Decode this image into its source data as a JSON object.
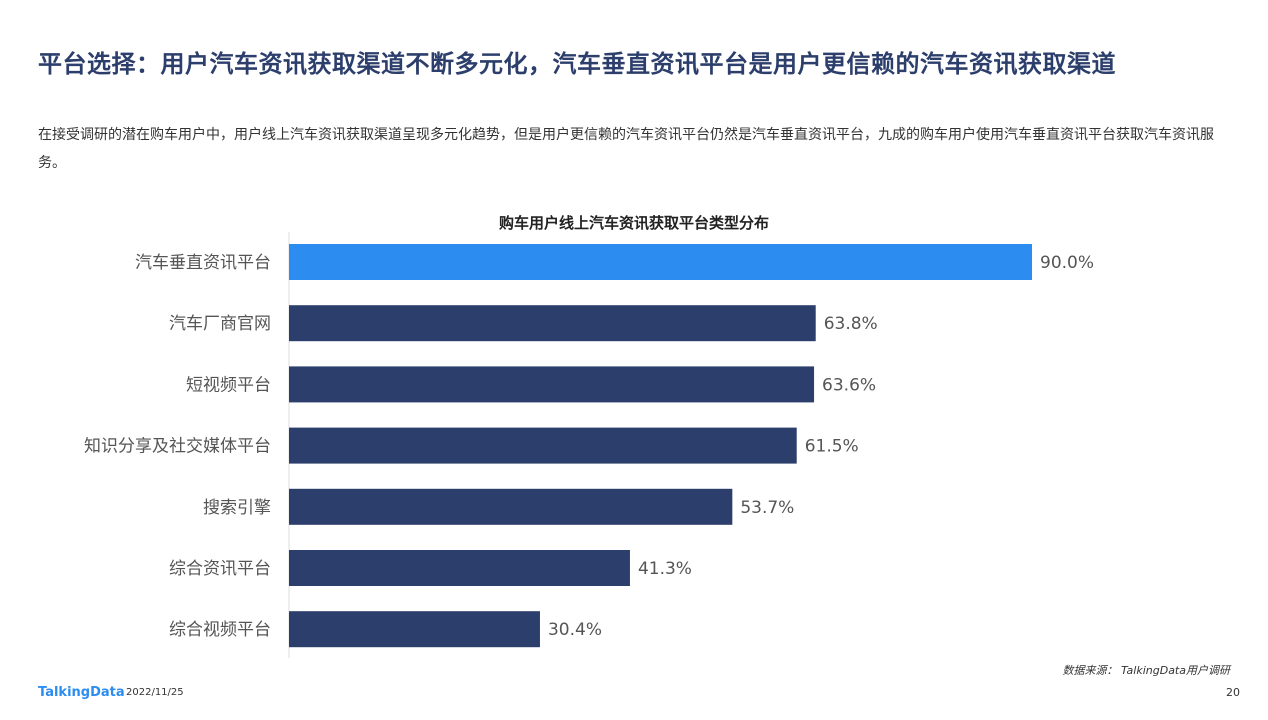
{
  "header": {
    "title": "平台选择：用户汽车资讯获取渠道不断多元化，汽车垂直资讯平台是用户更信赖的汽车资讯获取渠道",
    "description": "在接受调研的潜在购车用户中，用户线上汽车资讯获取渠道呈现多元化趋势，但是用户更信赖的汽车资讯平台仍然是汽车垂直资讯平台，九成的购车用户使用汽车垂直资讯平台获取汽车资讯服务。"
  },
  "chart_data": {
    "type": "bar",
    "orientation": "horizontal",
    "title": "购车用户线上汽车资讯获取平台类型分布",
    "categories": [
      "汽车垂直资讯平台",
      "汽车厂商官网",
      "短视频平台",
      "知识分享及社交媒体平台",
      "搜索引擎",
      "综合资讯平台",
      "综合视频平台"
    ],
    "values": [
      90.0,
      63.8,
      63.6,
      61.5,
      53.7,
      41.3,
      30.4
    ],
    "labels": [
      "90.0%",
      "63.8%",
      "63.6%",
      "61.5%",
      "53.7%",
      "41.3%",
      "30.4%"
    ],
    "unit": "%",
    "xlim": [
      0,
      90
    ],
    "highlight_index": 0,
    "colors": {
      "highlight": "#2d8cf0",
      "default": "#2c3e6b"
    }
  },
  "footer": {
    "source": "数据来源： TalkingData用户调研",
    "logo": "TalkingData",
    "date": "2022/11/25",
    "page": "20"
  }
}
